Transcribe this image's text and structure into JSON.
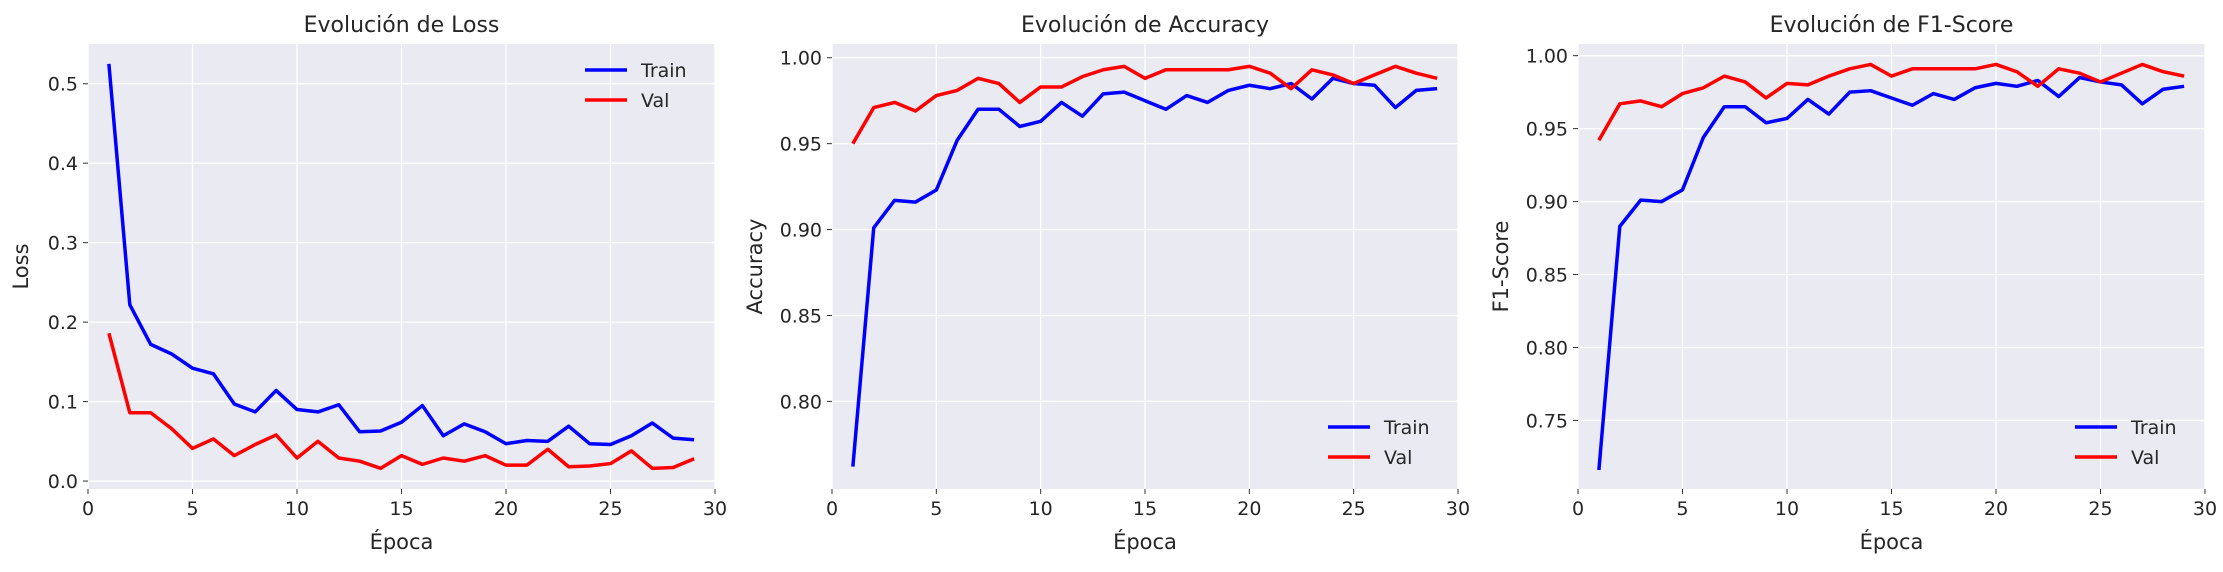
{
  "chart_data": [
    {
      "type": "line",
      "title": "Evolución de Loss",
      "xlabel": "Época",
      "ylabel": "Loss",
      "xlim": [
        0,
        30
      ],
      "ylim": [
        -0.01,
        0.55
      ],
      "xticks": [
        0,
        5,
        10,
        15,
        20,
        25,
        30
      ],
      "yticks": [
        0.0,
        0.1,
        0.2,
        0.3,
        0.4,
        0.5
      ],
      "ytick_labels": [
        "0.0",
        "0.1",
        "0.2",
        "0.3",
        "0.4",
        "0.5"
      ],
      "grid": true,
      "legend_position": "top-right",
      "x": [
        1,
        2,
        3,
        4,
        5,
        6,
        7,
        8,
        9,
        10,
        11,
        12,
        13,
        14,
        15,
        16,
        17,
        18,
        19,
        20,
        21,
        22,
        23,
        24,
        25,
        26,
        27,
        28,
        29
      ],
      "series": [
        {
          "name": "Train",
          "color": "#0000ff",
          "values": [
            0.525,
            0.222,
            0.172,
            0.16,
            0.142,
            0.135,
            0.097,
            0.087,
            0.114,
            0.09,
            0.087,
            0.096,
            0.062,
            0.063,
            0.074,
            0.095,
            0.057,
            0.072,
            0.062,
            0.047,
            0.051,
            0.05,
            0.069,
            0.047,
            0.046,
            0.057,
            0.073,
            0.054,
            0.052
          ]
        },
        {
          "name": "Val",
          "color": "#ff0000",
          "values": [
            0.186,
            0.086,
            0.086,
            0.066,
            0.041,
            0.053,
            0.032,
            0.046,
            0.058,
            0.029,
            0.05,
            0.029,
            0.025,
            0.016,
            0.032,
            0.021,
            0.029,
            0.025,
            0.032,
            0.02,
            0.02,
            0.04,
            0.018,
            0.019,
            0.022,
            0.038,
            0.016,
            0.017,
            0.028
          ]
        }
      ]
    },
    {
      "type": "line",
      "title": "Evolución de Accuracy",
      "xlabel": "Época",
      "ylabel": "Accuracy",
      "xlim": [
        0,
        30
      ],
      "ylim": [
        0.749,
        1.008
      ],
      "xticks": [
        0,
        5,
        10,
        15,
        20,
        25,
        30
      ],
      "yticks": [
        0.8,
        0.85,
        0.9,
        0.95,
        1.0
      ],
      "ytick_labels": [
        "0.80",
        "0.85",
        "0.90",
        "0.95",
        "1.00"
      ],
      "grid": true,
      "legend_position": "bottom-right",
      "x": [
        1,
        2,
        3,
        4,
        5,
        6,
        7,
        8,
        9,
        10,
        11,
        12,
        13,
        14,
        15,
        16,
        17,
        18,
        19,
        20,
        21,
        22,
        23,
        24,
        25,
        26,
        27,
        28,
        29
      ],
      "series": [
        {
          "name": "Train",
          "color": "#0000ff",
          "values": [
            0.762,
            0.901,
            0.917,
            0.916,
            0.923,
            0.952,
            0.97,
            0.97,
            0.96,
            0.963,
            0.974,
            0.966,
            0.979,
            0.98,
            0.975,
            0.97,
            0.978,
            0.974,
            0.981,
            0.984,
            0.982,
            0.985,
            0.976,
            0.988,
            0.985,
            0.984,
            0.971,
            0.981,
            0.982
          ]
        },
        {
          "name": "Val",
          "color": "#ff0000",
          "values": [
            0.95,
            0.971,
            0.974,
            0.969,
            0.978,
            0.981,
            0.988,
            0.985,
            0.974,
            0.983,
            0.983,
            0.989,
            0.993,
            0.995,
            0.988,
            0.993,
            0.993,
            0.993,
            0.993,
            0.995,
            0.991,
            0.982,
            0.993,
            0.99,
            0.985,
            0.99,
            0.995,
            0.991,
            0.988
          ]
        }
      ]
    },
    {
      "type": "line",
      "title": "Evolución de F1-Score",
      "xlabel": "Época",
      "ylabel": "F1-Score",
      "xlim": [
        0,
        30
      ],
      "ylim": [
        0.703,
        1.008
      ],
      "xticks": [
        0,
        5,
        10,
        15,
        20,
        25,
        30
      ],
      "yticks": [
        0.75,
        0.8,
        0.85,
        0.9,
        0.95,
        1.0
      ],
      "ytick_labels": [
        "0.75",
        "0.80",
        "0.85",
        "0.90",
        "0.95",
        "1.00"
      ],
      "grid": true,
      "legend_position": "bottom-right",
      "x": [
        1,
        2,
        3,
        4,
        5,
        6,
        7,
        8,
        9,
        10,
        11,
        12,
        13,
        14,
        15,
        16,
        17,
        18,
        19,
        20,
        21,
        22,
        23,
        24,
        25,
        26,
        27,
        28,
        29
      ],
      "series": [
        {
          "name": "Train",
          "color": "#0000ff",
          "values": [
            0.716,
            0.883,
            0.901,
            0.9,
            0.908,
            0.944,
            0.965,
            0.965,
            0.954,
            0.957,
            0.97,
            0.96,
            0.975,
            0.976,
            0.971,
            0.966,
            0.974,
            0.97,
            0.978,
            0.981,
            0.979,
            0.983,
            0.972,
            0.985,
            0.982,
            0.98,
            0.967,
            0.977,
            0.979
          ]
        },
        {
          "name": "Val",
          "color": "#ff0000",
          "values": [
            0.942,
            0.967,
            0.969,
            0.965,
            0.974,
            0.978,
            0.986,
            0.982,
            0.971,
            0.981,
            0.98,
            0.986,
            0.991,
            0.994,
            0.986,
            0.991,
            0.991,
            0.991,
            0.991,
            0.994,
            0.989,
            0.979,
            0.991,
            0.988,
            0.982,
            0.988,
            0.994,
            0.989,
            0.986
          ]
        }
      ]
    }
  ]
}
